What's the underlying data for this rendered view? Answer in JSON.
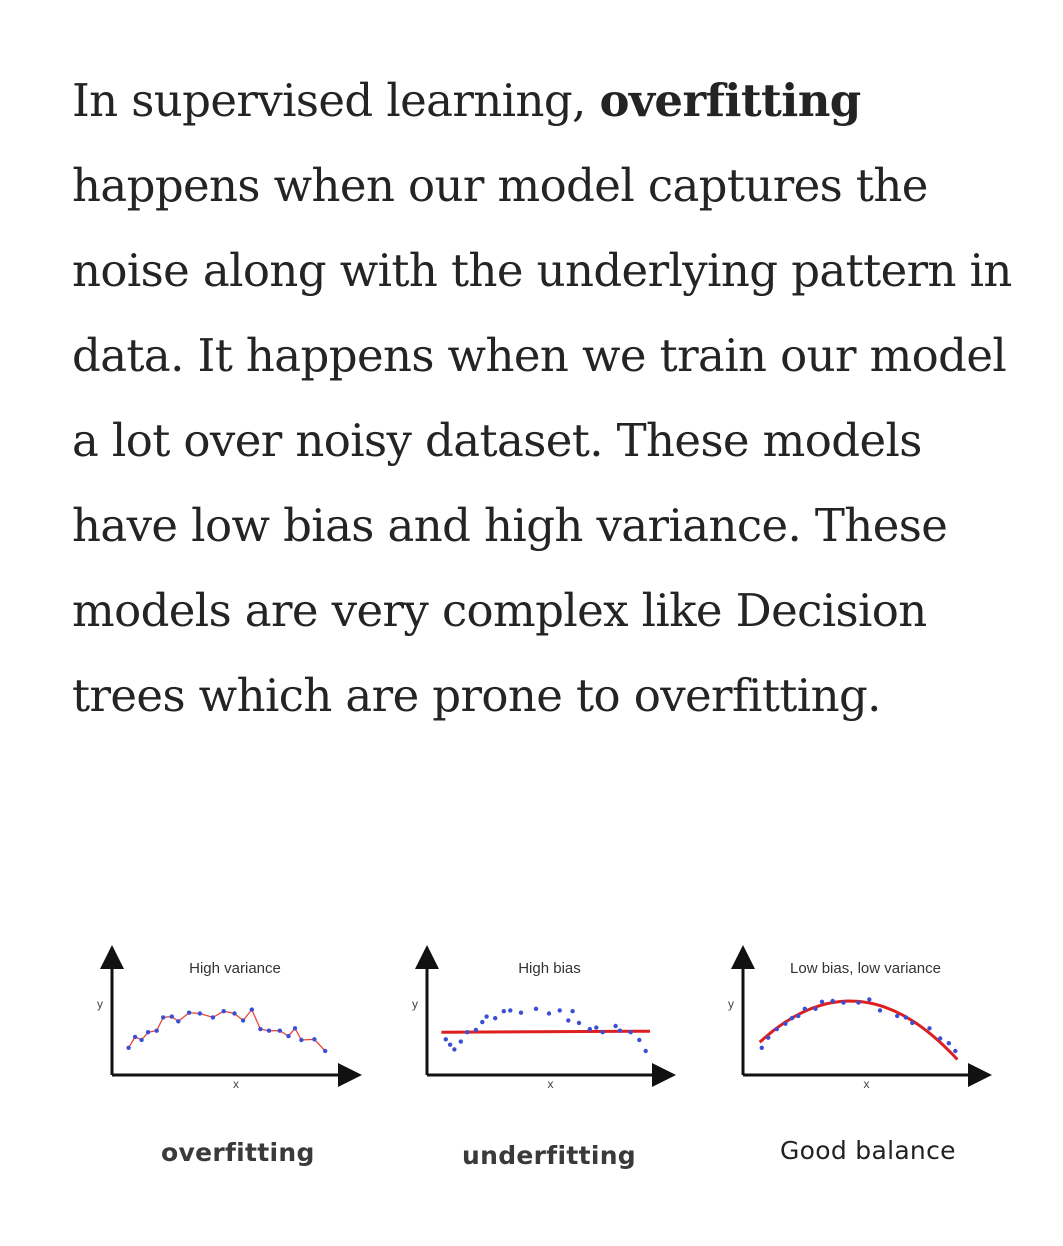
{
  "paragraph": {
    "intro": "In supervised learning, ",
    "bold_term": "overfitting",
    "rest": " happens when our model captures the noise along with the underlying pattern in data. It happens when we train our model a lot over noisy dataset. These models have low bias and high variance. These models are very complex like Decision trees which are prone to overfitting."
  },
  "panels": [
    {
      "title": "High variance",
      "xlabel": "x",
      "ylabel": "y",
      "caption": "overfitting",
      "fit": "interpolating-line",
      "points": [
        [
          0.04,
          0.22
        ],
        [
          0.07,
          0.36
        ],
        [
          0.1,
          0.32
        ],
        [
          0.13,
          0.42
        ],
        [
          0.17,
          0.44
        ],
        [
          0.2,
          0.61
        ],
        [
          0.24,
          0.62
        ],
        [
          0.27,
          0.56
        ],
        [
          0.32,
          0.67
        ],
        [
          0.37,
          0.66
        ],
        [
          0.43,
          0.61
        ],
        [
          0.48,
          0.69
        ],
        [
          0.53,
          0.66
        ],
        [
          0.57,
          0.57
        ],
        [
          0.61,
          0.71
        ],
        [
          0.65,
          0.46
        ],
        [
          0.69,
          0.44
        ],
        [
          0.74,
          0.44
        ],
        [
          0.78,
          0.37
        ],
        [
          0.81,
          0.47
        ],
        [
          0.84,
          0.32
        ],
        [
          0.9,
          0.33
        ],
        [
          0.95,
          0.18
        ]
      ]
    },
    {
      "title": "High bias",
      "xlabel": "x",
      "ylabel": "y",
      "caption": "underfitting",
      "fit": "flat-line",
      "points": [
        [
          0.05,
          0.33
        ],
        [
          0.07,
          0.26
        ],
        [
          0.09,
          0.2
        ],
        [
          0.12,
          0.3
        ],
        [
          0.15,
          0.42
        ],
        [
          0.19,
          0.45
        ],
        [
          0.22,
          0.55
        ],
        [
          0.24,
          0.62
        ],
        [
          0.28,
          0.6
        ],
        [
          0.32,
          0.69
        ],
        [
          0.35,
          0.7
        ],
        [
          0.4,
          0.67
        ],
        [
          0.47,
          0.72
        ],
        [
          0.53,
          0.66
        ],
        [
          0.58,
          0.7
        ],
        [
          0.62,
          0.57
        ],
        [
          0.64,
          0.69
        ],
        [
          0.67,
          0.54
        ],
        [
          0.72,
          0.46
        ],
        [
          0.75,
          0.48
        ],
        [
          0.78,
          0.42
        ],
        [
          0.84,
          0.5
        ],
        [
          0.86,
          0.44
        ],
        [
          0.91,
          0.42
        ],
        [
          0.95,
          0.32
        ],
        [
          0.98,
          0.18
        ]
      ]
    },
    {
      "title": "Low bias, low variance",
      "xlabel": "x",
      "ylabel": "y",
      "caption": "Good balance",
      "fit": "smooth-curve",
      "points": [
        [
          0.05,
          0.22
        ],
        [
          0.08,
          0.35
        ],
        [
          0.12,
          0.46
        ],
        [
          0.16,
          0.53
        ],
        [
          0.19,
          0.6
        ],
        [
          0.22,
          0.63
        ],
        [
          0.25,
          0.72
        ],
        [
          0.3,
          0.72
        ],
        [
          0.33,
          0.81
        ],
        [
          0.38,
          0.82
        ],
        [
          0.43,
          0.8
        ],
        [
          0.5,
          0.8
        ],
        [
          0.55,
          0.84
        ],
        [
          0.6,
          0.7
        ],
        [
          0.68,
          0.63
        ],
        [
          0.72,
          0.61
        ],
        [
          0.75,
          0.54
        ],
        [
          0.83,
          0.47
        ],
        [
          0.88,
          0.34
        ],
        [
          0.92,
          0.28
        ],
        [
          0.95,
          0.18
        ]
      ]
    }
  ],
  "colors": {
    "text": "#242424",
    "axis": "#111111",
    "points": "#3b4fd6",
    "overfit_line": "#e8483b",
    "fit_line": "#dd1f1f"
  }
}
